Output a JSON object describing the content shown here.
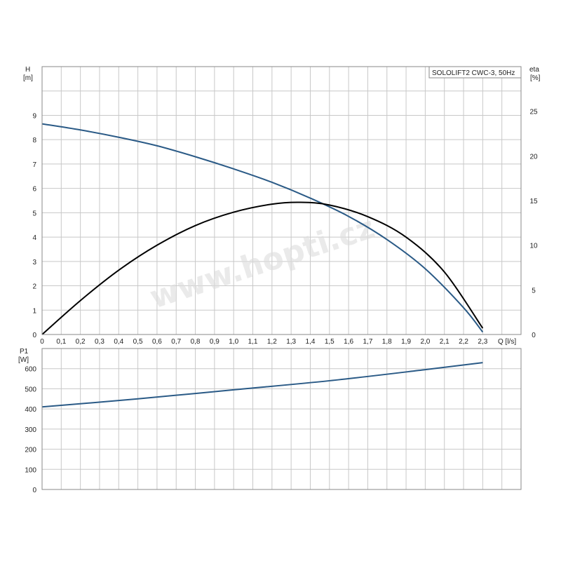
{
  "chart_data": [
    {
      "type": "line",
      "legend": "SOLOLIFT2 CWC-3, 50Hz",
      "xlabel": "Q [l/s]",
      "ylabel_left_top": "H",
      "ylabel_left_bottom": "[m]",
      "ylabel_right_top": "eta",
      "ylabel_right_bottom": "[%]",
      "xlim": [
        0,
        2.5
      ],
      "ylim_left": [
        0,
        11
      ],
      "ylim_right": [
        0,
        30
      ],
      "x_ticks": [
        "0",
        "0,1",
        "0,2",
        "0,3",
        "0,4",
        "0,5",
        "0,6",
        "0,7",
        "0,8",
        "0,9",
        "1,0",
        "1,1",
        "1,2",
        "1,3",
        "1,4",
        "1,5",
        "1,6",
        "1,7",
        "1,8",
        "1,9",
        "2,0",
        "2,1",
        "2,2",
        "2,3"
      ],
      "y_ticks_left": [
        "0",
        "1",
        "2",
        "3",
        "4",
        "5",
        "6",
        "7",
        "8",
        "9"
      ],
      "y_ticks_right": [
        "0",
        "5",
        "10",
        "15",
        "20",
        "25"
      ],
      "grid": true,
      "series": [
        {
          "axis": "left",
          "color": "#2a5a86",
          "x": [
            0,
            0.2,
            0.4,
            0.6,
            0.8,
            1.0,
            1.2,
            1.4,
            1.6,
            1.8,
            2.0,
            2.2,
            2.3
          ],
          "y": [
            8.65,
            8.4,
            8.1,
            7.75,
            7.3,
            6.8,
            6.25,
            5.6,
            4.85,
            3.9,
            2.7,
            1.1,
            0.1
          ]
        },
        {
          "axis": "right",
          "color": "#000000",
          "x": [
            0,
            0.2,
            0.4,
            0.6,
            0.8,
            1.0,
            1.2,
            1.35,
            1.5,
            1.7,
            1.9,
            2.1,
            2.3
          ],
          "y": [
            0,
            3.8,
            7.2,
            10.0,
            12.2,
            13.7,
            14.6,
            14.8,
            14.5,
            13.2,
            10.9,
            7.0,
            0.7
          ]
        }
      ]
    },
    {
      "type": "line",
      "ylabel_top": "P1",
      "ylabel_bottom": "[W]",
      "xlim": [
        0,
        2.5
      ],
      "ylim": [
        0,
        700
      ],
      "y_ticks": [
        "0",
        "100",
        "200",
        "300",
        "400",
        "500",
        "600"
      ],
      "grid": true,
      "series": [
        {
          "color": "#2a5a86",
          "x": [
            0,
            0.5,
            1.0,
            1.5,
            2.0,
            2.3
          ],
          "y": [
            410,
            450,
            495,
            540,
            595,
            630
          ]
        }
      ]
    }
  ]
}
